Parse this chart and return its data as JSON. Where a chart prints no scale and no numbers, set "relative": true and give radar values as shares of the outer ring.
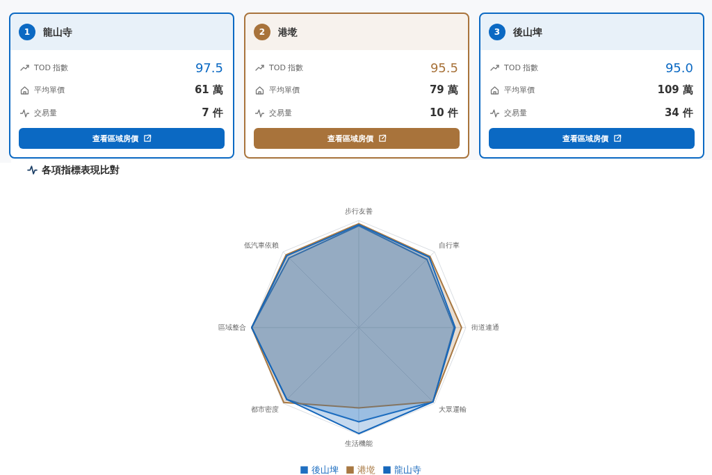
{
  "chart_data": [
    {
      "type": "other",
      "title": "龍山寺",
      "color": "#0b69c3",
      "annotations": [
        "1",
        "TOD 指數",
        "97.5",
        "平均單價",
        "61 萬",
        "交易量",
        "7 件",
        "查看區域房價"
      ]
    },
    {
      "type": "other",
      "title": "港墘",
      "color": "#a8733b",
      "annotations": [
        "2",
        "TOD 指數",
        "95.5",
        "平均單價",
        "79 萬",
        "交易量",
        "10 件",
        "查看區域房價"
      ]
    },
    {
      "type": "other",
      "title": "後山埤",
      "color": "#0b69c3",
      "annotations": [
        "3",
        "TOD 指數",
        "95.0",
        "平均單價",
        "109 萬",
        "交易量",
        "34 件",
        "查看區域房價"
      ]
    },
    {
      "type": "radar",
      "title": "各項指標表現比對",
      "relative": true,
      "grid": true,
      "legend": "bottom",
      "categories": [
        "步行友善",
        "自行車",
        "街道連通",
        "大眾運輸",
        "生活機能",
        "都市密度",
        "區域整合",
        "低汽車依賴"
      ],
      "series": [
        {
          "name": "後山埤",
          "color": "#1f6fc1",
          "values": [
            0.95,
            0.9,
            0.89,
            0.98,
            0.88,
            0.95,
            1.0,
            0.92
          ]
        },
        {
          "name": "港墘",
          "color": "#a87842",
          "values": [
            0.97,
            0.94,
            0.96,
            0.98,
            0.75,
            0.99,
            1.0,
            0.96
          ]
        },
        {
          "name": "龍山寺",
          "color": "#1667bb",
          "values": [
            0.96,
            0.93,
            0.9,
            0.98,
            0.99,
            0.95,
            1.0,
            0.95
          ]
        }
      ]
    }
  ]
}
